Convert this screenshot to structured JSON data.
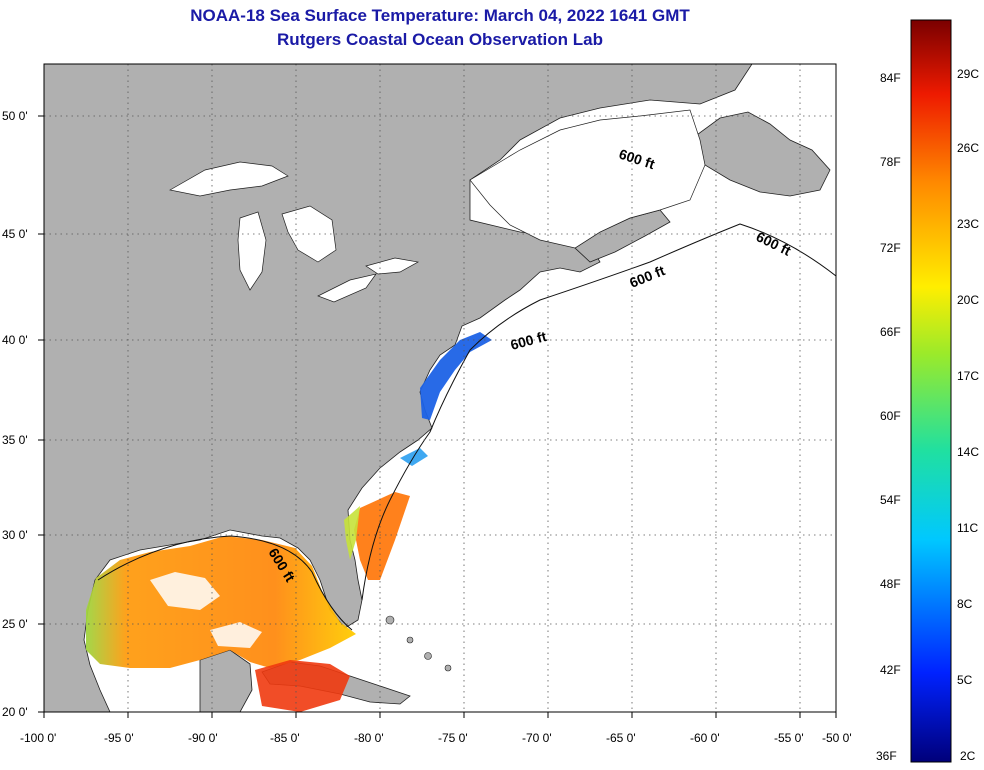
{
  "title": {
    "line1": "NOAA-18 Sea Surface Temperature:  March 04, 2022 1641 GMT",
    "line2": "Rutgers Coastal Ocean Observation Lab"
  },
  "map": {
    "lon_labels": [
      "-100 0'",
      "-95 0'",
      "-90 0'",
      "-85 0'",
      "-80 0'",
      "-75 0'",
      "-70 0'",
      "-65 0'",
      "-60 0'",
      "-55 0'",
      "-50 0'"
    ],
    "lat_labels": [
      "20 0'",
      "25 0'",
      "30 0'",
      "35 0'",
      "40 0'",
      "45 0'",
      "50 0'"
    ],
    "contour_label": "600 ft",
    "colors": {
      "land": "#b0b0b0",
      "water": "#ffffff",
      "title": "#1a1aa6"
    }
  },
  "colorbar": {
    "fahrenheit_labels": [
      "84F",
      "78F",
      "72F",
      "66F",
      "60F",
      "54F",
      "48F",
      "42F",
      "36F"
    ],
    "celsius_labels": [
      "29C",
      "26C",
      "23C",
      "20C",
      "17C",
      "14C",
      "11C",
      "8C",
      "5C",
      "2C"
    ]
  }
}
